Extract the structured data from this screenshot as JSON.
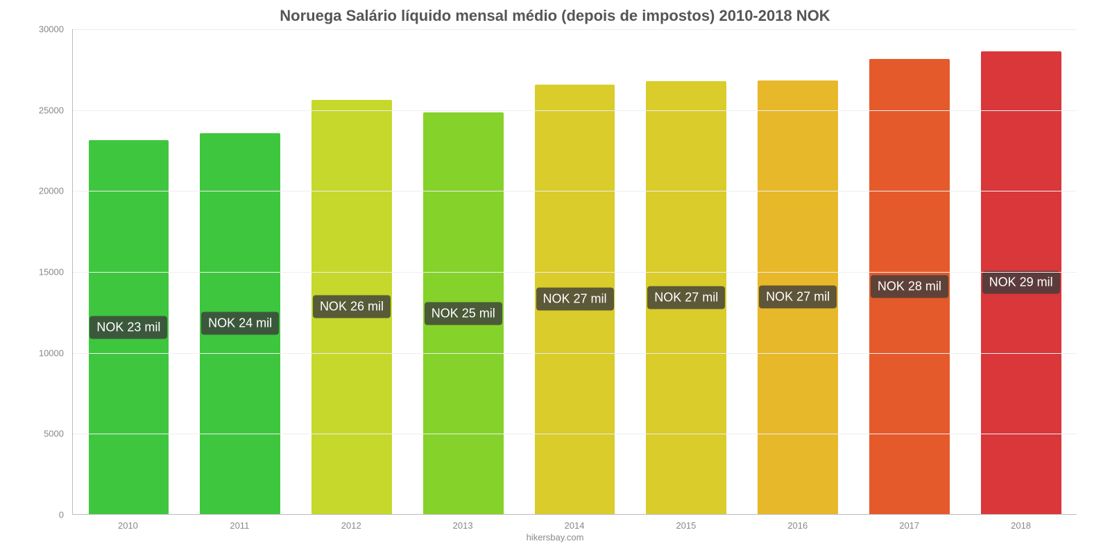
{
  "chart": {
    "type": "bar",
    "title": "Noruega Salário líquido mensal médio (depois de impostos) 2010-2018 NOK",
    "title_fontsize": 22,
    "title_color": "#555555",
    "background_color": "#ffffff",
    "grid_color": "#eeeeee",
    "axis_color": "#bbbbbb",
    "tick_label_color": "#888888",
    "tick_label_fontsize": 13,
    "bar_label_fontsize": 18,
    "bar_label_bg": "rgba(60,60,60,0.8)",
    "bar_label_color": "#ffffff",
    "bar_width_ratio": 0.72,
    "ylim": [
      0,
      30000
    ],
    "ytick_step": 5000,
    "yticks": [
      0,
      5000,
      10000,
      15000,
      20000,
      25000,
      30000
    ],
    "categories": [
      "2010",
      "2011",
      "2012",
      "2013",
      "2014",
      "2015",
      "2016",
      "2017",
      "2018"
    ],
    "values": [
      23100,
      23550,
      25600,
      24800,
      26550,
      26750,
      26800,
      28100,
      28600
    ],
    "bar_labels": [
      "NOK 23 mil",
      "NOK 24 mil",
      "NOK 26 mil",
      "NOK 25 mil",
      "NOK 27 mil",
      "NOK 27 mil",
      "NOK 27 mil",
      "NOK 28 mil",
      "NOK 29 mil"
    ],
    "bar_colors": [
      "#3fc63f",
      "#3fc63f",
      "#c6d82b",
      "#85d22b",
      "#d9cc2b",
      "#d9cc2b",
      "#e8b82b",
      "#e55a2b",
      "#d9373a"
    ],
    "source": "hikersbay.com"
  }
}
